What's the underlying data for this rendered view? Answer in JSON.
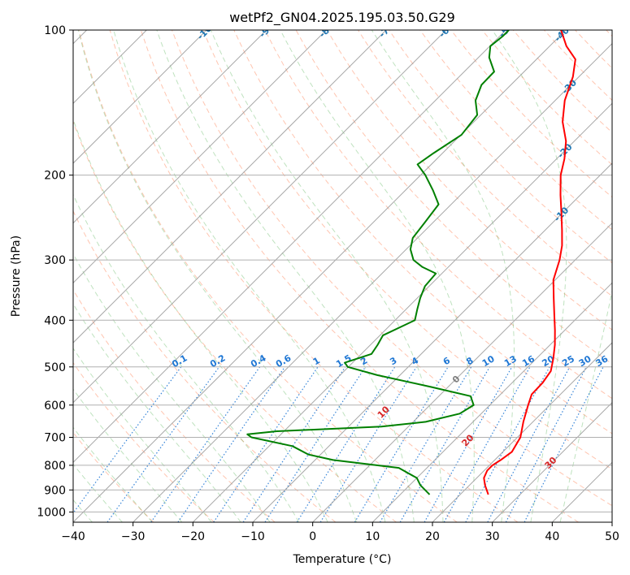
{
  "chart_data": {
    "type": "line",
    "title": "wetPf2_GN04.2025.195.03.50.G29",
    "xlabel": "Temperature (°C)",
    "ylabel": "Pressure (hPa)",
    "xlim": [
      -40,
      50
    ],
    "ylim": [
      1050,
      100
    ],
    "y_scale": "log",
    "skew": true,
    "grid": true,
    "x_ticks": [
      -40,
      -30,
      -20,
      -10,
      0,
      10,
      20,
      30,
      40,
      50
    ],
    "y_ticks": [
      100,
      200,
      300,
      400,
      500,
      600,
      700,
      800,
      900,
      1000
    ],
    "colors": {
      "temperature": "#ff0000",
      "dewpoint": "#008000",
      "isotherm": "#999999",
      "dry_adiabat": "#ff7f50",
      "moist_adiabat": "#2ca02c",
      "mixing_ratio": "#1f77d4",
      "isotherm_label": "#1f77b4",
      "dry_adiabat_label": "#d62728",
      "zero_label": "#7f7f7f"
    },
    "series": [
      {
        "key": "temperature",
        "points": [
          [
            920,
            24.7
          ],
          [
            880,
            22.6
          ],
          [
            850,
            21.2
          ],
          [
            820,
            20.5
          ],
          [
            800,
            20.5
          ],
          [
            780,
            21.0
          ],
          [
            750,
            21.5
          ],
          [
            700,
            20.5
          ],
          [
            650,
            18.4
          ],
          [
            600,
            16.4
          ],
          [
            570,
            15.2
          ],
          [
            540,
            15.1
          ],
          [
            510,
            14.5
          ],
          [
            480,
            12.8
          ],
          [
            450,
            10.8
          ],
          [
            420,
            8.4
          ],
          [
            390,
            5.7
          ],
          [
            360,
            2.8
          ],
          [
            330,
            -0.3
          ],
          [
            300,
            -2.6
          ],
          [
            280,
            -4.6
          ],
          [
            260,
            -7.2
          ],
          [
            240,
            -10.1
          ],
          [
            220,
            -13.3
          ],
          [
            200,
            -16.6
          ],
          [
            185,
            -18.7
          ],
          [
            170,
            -21.4
          ],
          [
            155,
            -25.2
          ],
          [
            140,
            -28.4
          ],
          [
            125,
            -31.0
          ],
          [
            115,
            -33.5
          ],
          [
            108,
            -37.2
          ],
          [
            100,
            -40.8
          ]
        ]
      },
      {
        "key": "dewpoint",
        "points": [
          [
            920,
            14.9
          ],
          [
            880,
            11.8
          ],
          [
            850,
            10.0
          ],
          [
            810,
            5.3
          ],
          [
            780,
            -7.0
          ],
          [
            760,
            -12.0
          ],
          [
            730,
            -16.1
          ],
          [
            700,
            -24.4
          ],
          [
            690,
            -25.6
          ],
          [
            680,
            -21.2
          ],
          [
            665,
            -4.5
          ],
          [
            650,
            2.1
          ],
          [
            625,
            6.4
          ],
          [
            600,
            7.3
          ],
          [
            575,
            5.3
          ],
          [
            550,
            -2.9
          ],
          [
            520,
            -13.8
          ],
          [
            500,
            -20.1
          ],
          [
            490,
            -21.3
          ],
          [
            470,
            -18.3
          ],
          [
            450,
            -18.8
          ],
          [
            430,
            -19.5
          ],
          [
            400,
            -16.7
          ],
          [
            380,
            -18.1
          ],
          [
            360,
            -19.5
          ],
          [
            340,
            -20.7
          ],
          [
            320,
            -21.0
          ],
          [
            310,
            -24.4
          ],
          [
            300,
            -27.0
          ],
          [
            285,
            -29.3
          ],
          [
            270,
            -30.8
          ],
          [
            250,
            -31.4
          ],
          [
            230,
            -32.1
          ],
          [
            215,
            -35.4
          ],
          [
            200,
            -39.2
          ],
          [
            190,
            -42.3
          ],
          [
            180,
            -41.5
          ],
          [
            165,
            -39.9
          ],
          [
            150,
            -40.6
          ],
          [
            140,
            -43.3
          ],
          [
            130,
            -44.9
          ],
          [
            122,
            -45.0
          ],
          [
            114,
            -48.2
          ],
          [
            108,
            -49.9
          ],
          [
            103,
            -49.5
          ],
          [
            100,
            -49.5
          ]
        ]
      }
    ],
    "isotherm_labels": [
      "-100",
      "-90",
      "-80",
      "-70",
      "-60",
      "-50",
      "-40",
      "-30",
      "-20",
      "-10",
      "0"
    ],
    "dry_adiabat_labels": [
      "10",
      "20",
      "30",
      "40"
    ],
    "mixing_ratio_labels": [
      "0.1",
      "0.2",
      "0.4",
      "0.6",
      "1",
      "1.5",
      "2",
      "3",
      "4",
      "6",
      "8",
      "10",
      "13",
      "16",
      "20",
      "25",
      "30",
      "36"
    ]
  }
}
